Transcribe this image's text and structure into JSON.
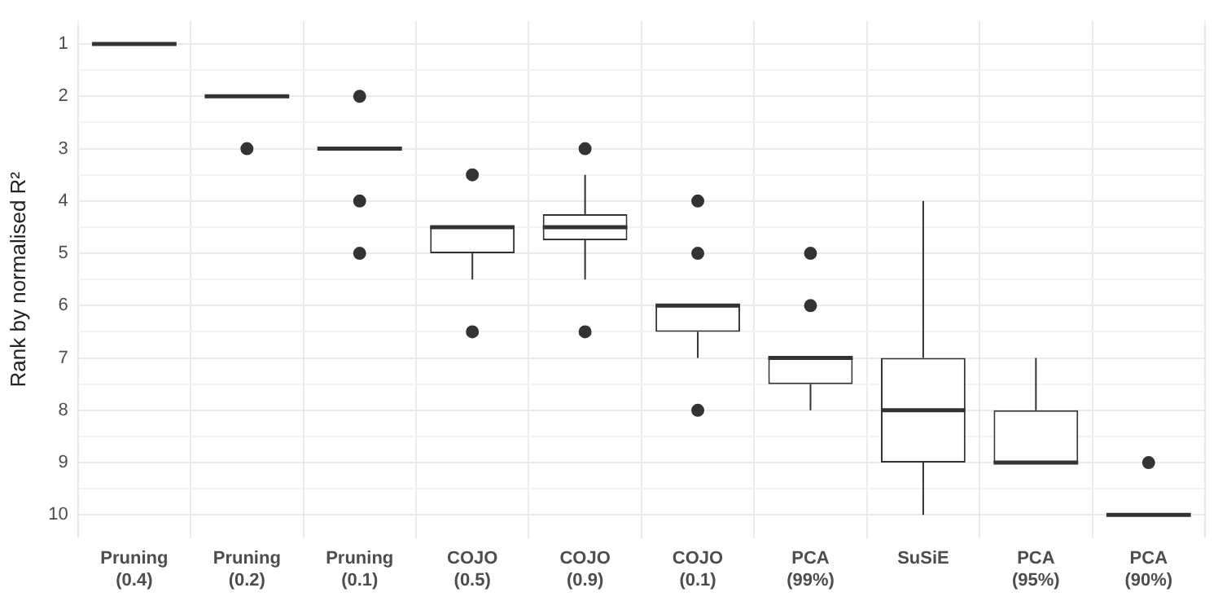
{
  "chart_data": {
    "type": "box",
    "ylabel": "Rank by normalised R²",
    "categories": [
      "Pruning (0.4)",
      "Pruning (0.2)",
      "Pruning (0.1)",
      "COJO (0.5)",
      "COJO (0.9)",
      "COJO (0.1)",
      "PCA (99%)",
      "SuSiE",
      "PCA (95%)",
      "PCA (90%)"
    ],
    "color": "#333333",
    "boxes": [
      {
        "low": 1,
        "q1": 1,
        "median": 1,
        "q3": 1,
        "high": 1
      },
      {
        "low": 2,
        "q1": 2,
        "median": 2,
        "q3": 2,
        "high": 2,
        "outliers": [
          3
        ]
      },
      {
        "low": 3,
        "q1": 3,
        "median": 3,
        "q3": 3,
        "high": 3,
        "outliers": [
          2,
          4,
          5
        ]
      },
      {
        "low": 4.5,
        "q1": 4.5,
        "median": 4.5,
        "q3": 5,
        "high": 5.5,
        "outliers": [
          3.5,
          6.5
        ]
      },
      {
        "low": 3.5,
        "q1": 4.25,
        "median": 4.5,
        "q3": 4.75,
        "high": 5.5,
        "outliers": [
          3,
          6.5
        ]
      },
      {
        "low": 6,
        "q1": 6,
        "median": 6,
        "q3": 6.5,
        "high": 7,
        "outliers": [
          4,
          5,
          8
        ]
      },
      {
        "low": 7,
        "q1": 7,
        "median": 7,
        "q3": 7.5,
        "high": 8,
        "outliers": [
          5,
          6
        ]
      },
      {
        "low": 4,
        "q1": 7,
        "median": 8,
        "q3": 9,
        "high": 10
      },
      {
        "low": 7,
        "q1": 8,
        "median": 9,
        "q3": 9,
        "high": 9
      },
      {
        "low": 10,
        "q1": 10,
        "median": 10,
        "q3": 10,
        "high": 10,
        "outliers": [
          9
        ]
      }
    ],
    "ylim": [
      10.45,
      0.55
    ],
    "yticks": [
      1,
      {
        "value": 1.5,
        "label": null
      },
      2,
      {
        "value": 2.5,
        "label": null
      },
      3,
      {
        "value": 3.5,
        "label": null
      },
      4,
      {
        "value": 4.5,
        "label": null
      },
      5,
      {
        "value": 5.5,
        "label": null
      },
      6,
      {
        "value": 6.5,
        "label": null
      },
      7,
      {
        "value": 7.5,
        "label": null
      },
      8,
      {
        "value": 8.5,
        "label": null
      },
      9,
      {
        "value": 9.5,
        "label": null
      },
      10
    ],
    "grid": true,
    "legend": false
  }
}
